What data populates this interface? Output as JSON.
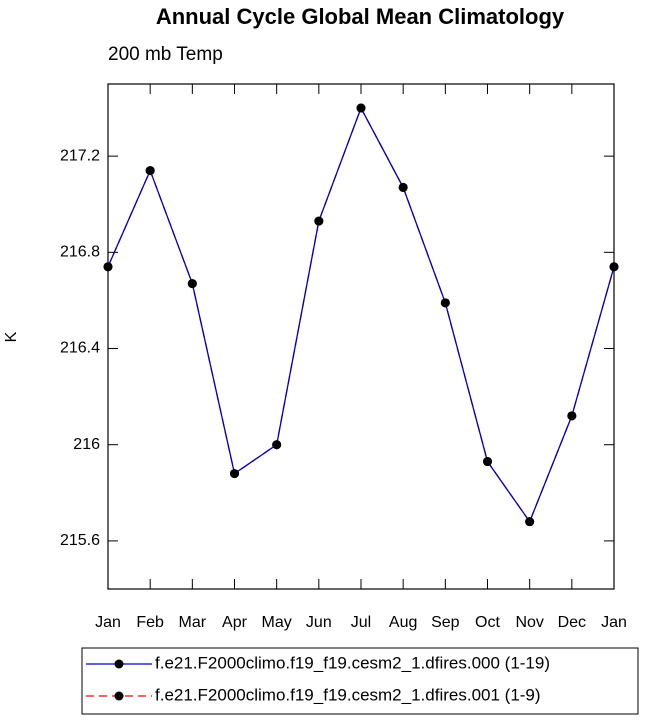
{
  "chart_data": {
    "type": "line",
    "title": "Annual Cycle Global Mean Climatology",
    "subtitle": "200 mb Temp",
    "ylabel": "K",
    "categories": [
      "Jan",
      "Feb",
      "Mar",
      "Apr",
      "May",
      "Jun",
      "Jul",
      "Aug",
      "Sep",
      "Oct",
      "Nov",
      "Dec",
      "Jan"
    ],
    "series": [
      {
        "name": "f.e21.F2000climo.f19_f19.cesm2_1.dfires.001 (1-9)",
        "color": "#ff0000",
        "dashed": true,
        "values": [
          216.74,
          217.14,
          216.67,
          215.88,
          216.0,
          216.93,
          217.4,
          217.07,
          216.59,
          215.93,
          215.68,
          216.12,
          216.74
        ]
      },
      {
        "name": "f.e21.F2000climo.f19_f19.cesm2_1.dfires.000 (1-19)",
        "color": "#0000cc",
        "dashed": false,
        "values": [
          216.74,
          217.14,
          216.67,
          215.88,
          216.0,
          216.93,
          217.4,
          217.07,
          216.59,
          215.93,
          215.68,
          216.12,
          216.74
        ]
      }
    ],
    "ylim": [
      215.4,
      217.5
    ],
    "yticks": [
      215.6,
      216.0,
      216.4,
      216.8,
      217.2
    ],
    "marker_color": "#000000"
  }
}
